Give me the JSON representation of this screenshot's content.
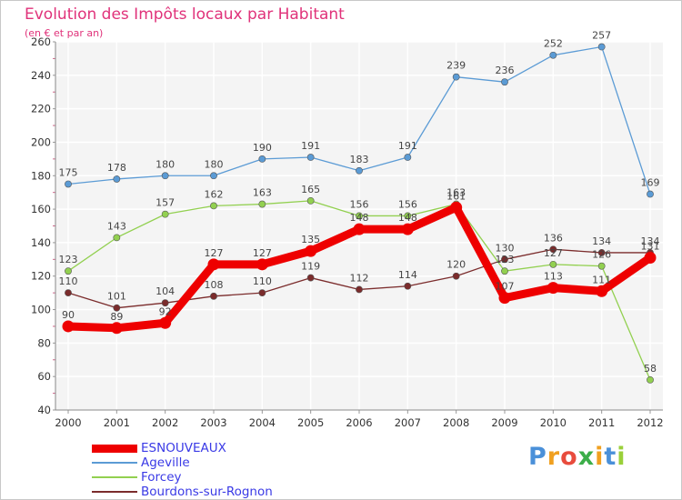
{
  "chart_data": {
    "type": "line",
    "title": "Evolution des Impôts locaux par Habitant",
    "subtitle": "(en € et par an)",
    "xlabel": "",
    "ylabel": "",
    "x": [
      "2000",
      "2001",
      "2002",
      "2003",
      "2004",
      "2005",
      "2006",
      "2007",
      "2008",
      "2009",
      "2010",
      "2011",
      "2012"
    ],
    "ylim": [
      40,
      260
    ],
    "yticks": [
      "40",
      "60",
      "80",
      "100",
      "120",
      "140",
      "160",
      "180",
      "200",
      "220",
      "240",
      "260"
    ],
    "grid": true,
    "legend_position": "bottom-left",
    "series": [
      {
        "name": "ESNOUVEAUX",
        "color": "#ee0000",
        "values": [
          90,
          89,
          92,
          127,
          127,
          135,
          148,
          148,
          161,
          107,
          113,
          111,
          131
        ],
        "labels": [
          "90",
          "89",
          "92",
          "127",
          "127",
          "135",
          "148",
          "148",
          "161",
          "107",
          "113",
          "111",
          "131"
        ]
      },
      {
        "name": "Ageville",
        "color": "#5b9bd5",
        "values": [
          175,
          178,
          180,
          180,
          190,
          191,
          183,
          191,
          239,
          236,
          252,
          257,
          169
        ],
        "labels": [
          "175",
          "178",
          "180",
          "180",
          "190",
          "191",
          "183",
          "191",
          "239",
          "236",
          "252",
          "257",
          "169"
        ]
      },
      {
        "name": "Forcey",
        "color": "#92d050",
        "values": [
          123,
          143,
          157,
          162,
          163,
          165,
          156,
          156,
          163,
          123,
          127,
          126,
          58
        ],
        "labels": [
          "123",
          "143",
          "157",
          "162",
          "163",
          "165",
          "156",
          "156",
          "163",
          "123",
          "127",
          "126",
          "58"
        ]
      },
      {
        "name": "Bourdons-sur-Rognon",
        "color": "#7b2c2c",
        "values": [
          110,
          101,
          104,
          108,
          110,
          119,
          112,
          114,
          120,
          130,
          136,
          134,
          134
        ],
        "labels": [
          "110",
          "101",
          "104",
          "108",
          "110",
          "119",
          "112",
          "114",
          "120",
          "130",
          "136",
          "134",
          "134"
        ]
      }
    ]
  },
  "logo": {
    "letters": [
      "P",
      "r",
      "o",
      "x",
      "i",
      "t",
      "i"
    ],
    "colors": [
      "#4a90d9",
      "#f0a020",
      "#e84c3d",
      "#3cae49",
      "#f0a020",
      "#4a90d9",
      "#9ad03a"
    ]
  }
}
